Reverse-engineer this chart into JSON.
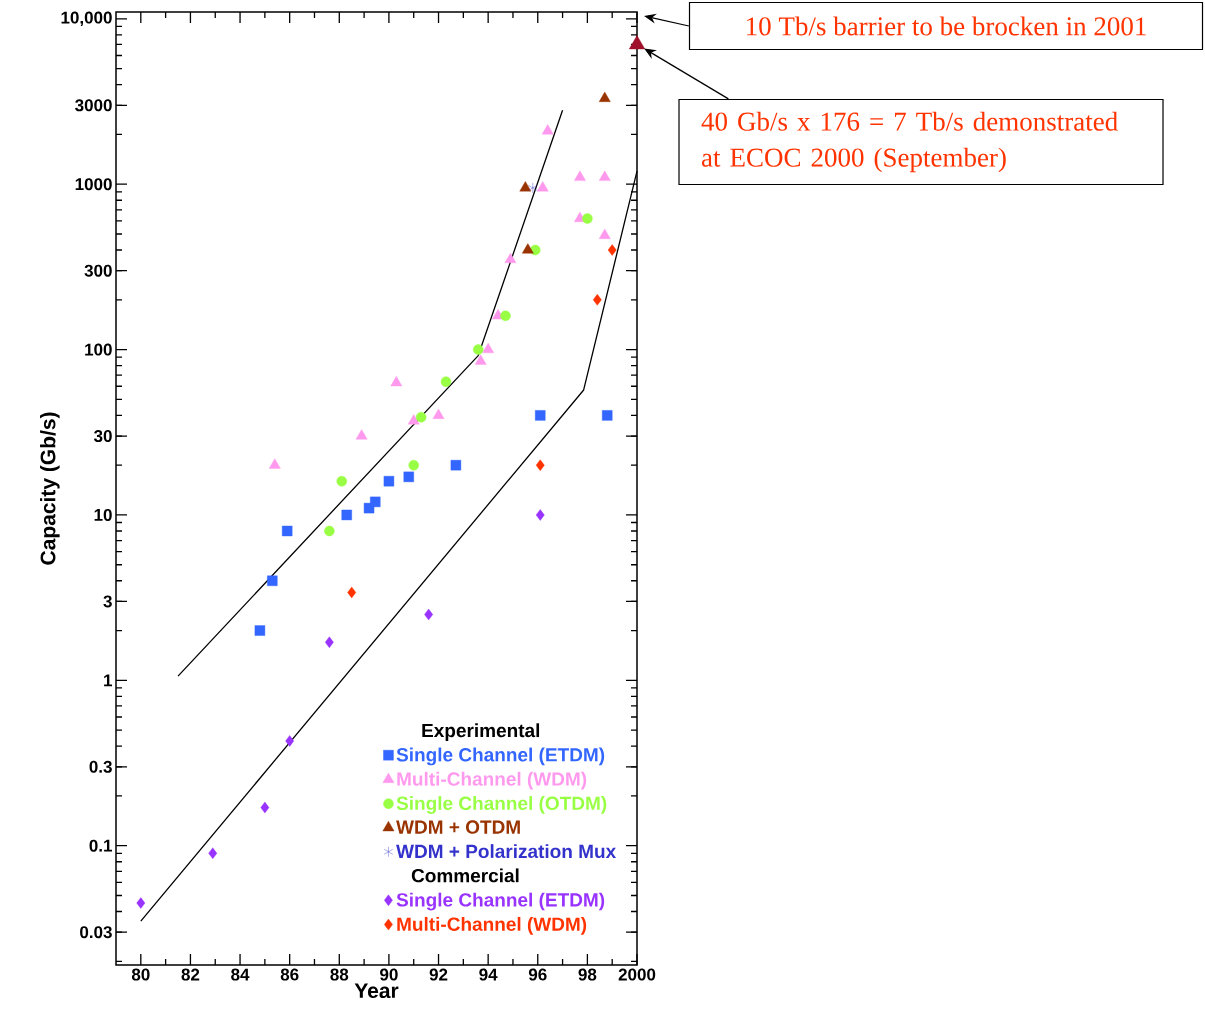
{
  "chart_data": {
    "type": "scatter",
    "xlabel": "Year",
    "ylabel": "Capacity (Gb/s)",
    "log": "y",
    "legend": "bottom right",
    "legend_title": "Experimental",
    "xlim": [
      1979,
      2000
    ],
    "xticks": [
      {
        "value": 1980,
        "label": "80"
      },
      {
        "value": 1982,
        "label": "82"
      },
      {
        "value": 1984,
        "label": "84"
      },
      {
        "value": 1986,
        "label": "86"
      },
      {
        "value": 1988,
        "label": "88"
      },
      {
        "value": 1990,
        "label": "90"
      },
      {
        "value": 1992,
        "label": "92"
      },
      {
        "value": 1994,
        "label": "94"
      },
      {
        "value": 1996,
        "label": "96"
      },
      {
        "value": 1998,
        "label": "98"
      },
      2000
    ],
    "ylim": [
      0.019,
      11000
    ],
    "yticks": [
      0.03,
      0.1,
      0.3,
      1,
      3,
      10,
      30,
      100,
      300,
      1000,
      3000,
      {
        "value": 10000,
        "label": "10,000"
      }
    ],
    "series": [
      {
        "name": "Single Channel (ETDM)",
        "color": "#3366ff",
        "marker": "square",
        "x": [
          1984.8,
          1985.3,
          1985.9,
          1988.3,
          1989.2,
          1989.45,
          1990.0,
          1990.8,
          1992.7,
          1996.1,
          1998.8
        ],
        "values": [
          2,
          4,
          8,
          10,
          11,
          12,
          16,
          17,
          20,
          40,
          40
        ]
      },
      {
        "name": "Multi-Channel (WDM)",
        "color": "#ff99ee",
        "marker": "triangle",
        "x": [
          1985.4,
          1988.9,
          1990.3,
          1991.0,
          1992.0,
          1993.7,
          1994.0,
          1994.4,
          1994.9,
          1996.2,
          1996.4,
          1997.7,
          1998.7,
          1997.7,
          1998.7
        ],
        "values": [
          20,
          30,
          63,
          37,
          40,
          85,
          100,
          160,
          350,
          950,
          2100,
          1100,
          1100,
          620,
          490
        ]
      },
      {
        "name": "Single Channel (OTDM)",
        "color": "#99ff44",
        "marker": "circle",
        "x": [
          1987.6,
          1988.1,
          1991.0,
          1991.3,
          1992.3,
          1993.6,
          1994.7,
          1995.9,
          1998.0
        ],
        "values": [
          8,
          16,
          20,
          39,
          64,
          100,
          160,
          400,
          620
        ]
      },
      {
        "name": "WDM + OTDM",
        "color": "#993300",
        "marker": "triangle",
        "x": [
          1995.5,
          1995.6,
          1998.7
        ],
        "values": [
          950,
          400,
          3300
        ]
      },
      {
        "name": "WDM + Polarization Mux",
        "color": "#3333cc",
        "marker": "cross",
        "x": [
          1995.8
        ],
        "values": [
          950
        ]
      },
      {
        "name": "Single Channel (ETDM)",
        "color": "#9933ff",
        "marker": "diamond",
        "x": [
          1980.0,
          1982.9,
          1985.0,
          1986.0,
          1987.6,
          1991.6,
          1996.1
        ],
        "values": [
          0.045,
          0.09,
          0.17,
          0.43,
          1.7,
          2.5,
          10
        ]
      },
      {
        "name": "Multi-Channel (WDM)",
        "color": "#ff3300",
        "marker": "diamond",
        "x": [
          1988.5,
          1996.1,
          1998.4,
          1999.0
        ],
        "values": [
          3.4,
          20,
          200,
          400
        ]
      },
      {
        "color": "#a0102a",
        "marker": "triangle",
        "x": [
          2000
        ],
        "values": [
          7000
        ]
      },
      {
        "type": "line",
        "color": "#000000",
        "marker": "none",
        "x": [
          1981.5,
          1993.6,
          1997.0
        ],
        "values": [
          1.06,
          92,
          2800
        ]
      },
      {
        "type": "line",
        "color": "#000000",
        "marker": "none",
        "x": [
          1980.0,
          1997.85,
          2000
        ],
        "values": [
          0.035,
          57,
          1200
        ]
      }
    ],
    "annotations": [
      "Commercial",
      "10 Tb/s barrier to be brocken in 2001",
      "40 Gb/s x 176 = 7 Tb/s demonstrated at ECOC 2000 (September)"
    ]
  }
}
